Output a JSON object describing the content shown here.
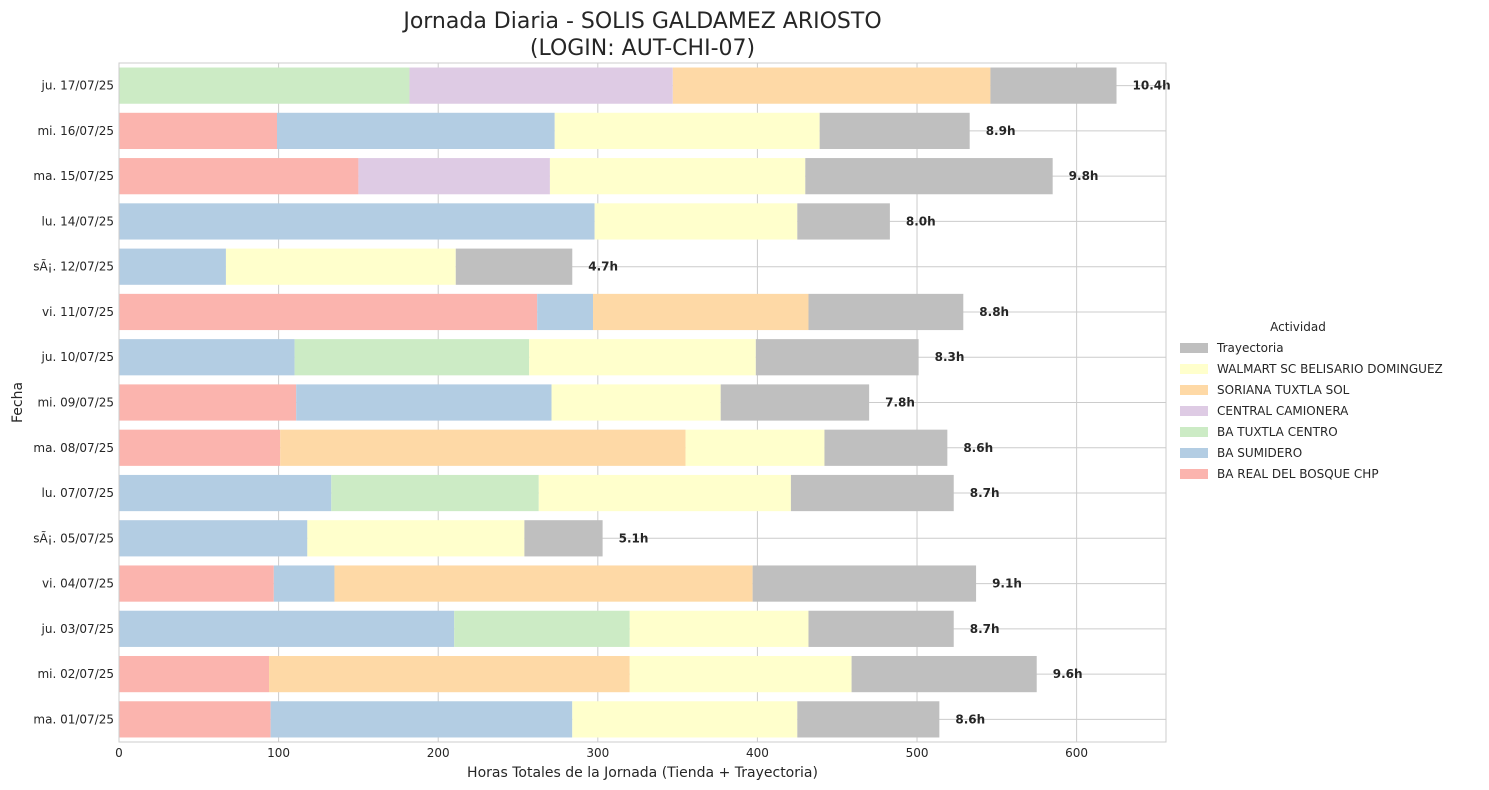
{
  "chart_data": {
    "type": "bar",
    "orientation": "horizontal",
    "stacked": true,
    "title": "Jornada Diaria - SOLIS GALDAMEZ ARIOSTO",
    "subtitle": "(LOGIN: AUT-CHI-07)",
    "xlabel": "Horas Totales de la Jornada (Tienda + Trayectoria)",
    "ylabel": "Fecha",
    "xlim": [
      0,
      656
    ],
    "xticks": [
      0,
      100,
      200,
      300,
      400,
      500,
      600
    ],
    "grid": true,
    "legend": {
      "title": "Actividad",
      "placement": "center-right"
    },
    "categories": [
      "ma. 01/07/25",
      "mi. 02/07/25",
      "ju. 03/07/25",
      "vi. 04/07/25",
      "sÃ¡. 05/07/25",
      "lu. 07/07/25",
      "ma. 08/07/25",
      "mi. 09/07/25",
      "ju. 10/07/25",
      "vi. 11/07/25",
      "sÃ¡. 12/07/25",
      "lu. 14/07/25",
      "ma. 15/07/25",
      "mi. 16/07/25",
      "ju. 17/07/25"
    ],
    "totals": [
      "8.6h",
      "9.6h",
      "8.7h",
      "9.1h",
      "5.1h",
      "8.7h",
      "8.6h",
      "7.8h",
      "8.3h",
      "8.8h",
      "4.7h",
      "8.0h",
      "9.8h",
      "8.9h",
      "10.4h"
    ],
    "series": [
      {
        "name": "BA REAL DEL BOSQUE CHP",
        "color": "#fbb4ae",
        "values": [
          95,
          94,
          0,
          97,
          0,
          0,
          101,
          111,
          0,
          262,
          0,
          0,
          150,
          99,
          0
        ]
      },
      {
        "name": "BA SUMIDERO",
        "color": "#b3cde3",
        "values": [
          189,
          0,
          210,
          38,
          118,
          133,
          0,
          160,
          110,
          35,
          67,
          298,
          0,
          174,
          0
        ]
      },
      {
        "name": "BA TUXTLA CENTRO",
        "color": "#ccebc5",
        "values": [
          0,
          0,
          110,
          0,
          0,
          130,
          0,
          0,
          147,
          0,
          0,
          0,
          0,
          0,
          182
        ]
      },
      {
        "name": "CENTRAL CAMIONERA",
        "color": "#decbe4",
        "values": [
          0,
          0,
          0,
          0,
          0,
          0,
          0,
          0,
          0,
          0,
          0,
          0,
          120,
          0,
          165
        ]
      },
      {
        "name": "SORIANA TUXTLA SOL",
        "color": "#fed9a6",
        "values": [
          0,
          226,
          0,
          262,
          0,
          0,
          254,
          0,
          0,
          135,
          0,
          0,
          0,
          0,
          199
        ]
      },
      {
        "name": "WALMART SC BELISARIO DOMINGUEZ",
        "color": "#ffffcc",
        "values": [
          141,
          139,
          112,
          0,
          136,
          158,
          87,
          106,
          142,
          0,
          144,
          127,
          160,
          166,
          0
        ]
      },
      {
        "name": "Trayectoria",
        "color": "#bfbfbf",
        "values": [
          89,
          116,
          91,
          140,
          49,
          102,
          77,
          93,
          102,
          97,
          73,
          58,
          155,
          94,
          79
        ]
      }
    ]
  }
}
